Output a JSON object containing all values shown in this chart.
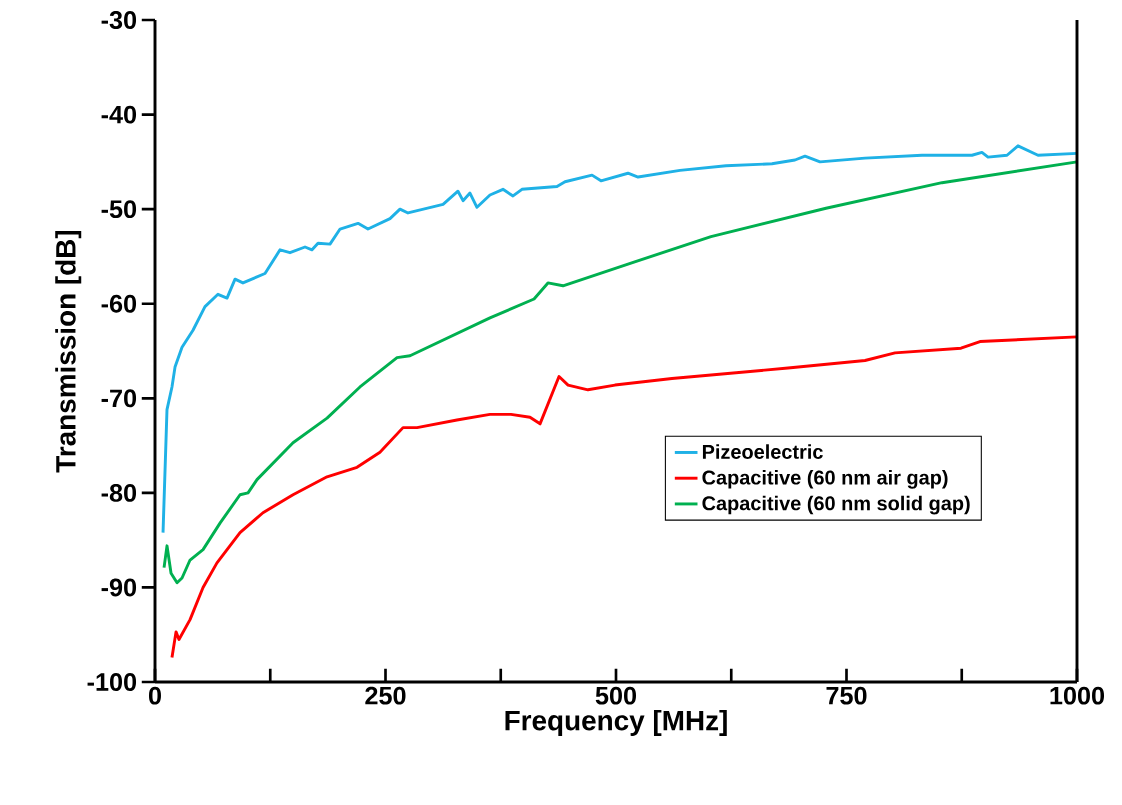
{
  "chart_data": {
    "type": "line",
    "xlabel": "Frequency [MHz]",
    "ylabel": "Transmission [dB]",
    "xlim": [
      0,
      1000
    ],
    "ylim": [
      -100,
      -30
    ],
    "xticks": [
      0,
      {
        "value": 125,
        "label": null
      },
      250,
      {
        "value": 375,
        "label": null
      },
      500,
      {
        "value": 625,
        "label": null
      },
      750,
      {
        "value": 875,
        "label": null
      },
      1000
    ],
    "yticks": [
      -100,
      -90,
      -80,
      -70,
      -60,
      -50,
      -40,
      -30
    ],
    "legend": "right",
    "grid": false,
    "marker": "none",
    "line_style": "solid",
    "series": [
      {
        "name": "Pizeoelectric",
        "color": "#1fb1e6",
        "x": [
          8.7,
          13,
          18.4,
          21.7,
          29.3,
          41.2,
          54.2,
          68.3,
          78.1,
          86.8,
          95.4,
          119.3,
          135.6,
          146.4,
          162.7,
          170.3,
          176.8,
          189.8,
          200.7,
          220.2,
          231,
          254.9,
          265.7,
          274.4,
          312.4,
          328.6,
          334.1,
          341.6,
          349.2,
          363.3,
          377.4,
          388.3,
          398,
          436,
          444.7,
          474,
          483.7,
          513,
          523.9,
          569.4,
          619.3,
          669.2,
          694.1,
          705,
          721.3,
          770.1,
          831.9,
          886.1,
          896.9,
          903.5,
          924.1,
          936,
          957.7,
          1000
        ],
        "values": [
          -84.2,
          -71.2,
          -68.8,
          -66.7,
          -64.6,
          -62.8,
          -60.3,
          -59.0,
          -59.4,
          -57.4,
          -57.8,
          -56.8,
          -54.3,
          -54.6,
          -54.0,
          -54.3,
          -53.6,
          -53.7,
          -52.1,
          -51.5,
          -52.1,
          -51.0,
          -50.0,
          -50.4,
          -49.5,
          -48.1,
          -49.1,
          -48.3,
          -49.8,
          -48.5,
          -47.9,
          -48.6,
          -47.9,
          -47.6,
          -47.1,
          -46.4,
          -47.0,
          -46.2,
          -46.6,
          -45.9,
          -45.4,
          -45.2,
          -44.8,
          -44.4,
          -45.0,
          -44.6,
          -44.3,
          -44.3,
          -44.0,
          -44.5,
          -44.3,
          -43.3,
          -44.3,
          -44.1
        ]
      },
      {
        "name": "Capacitive (60 nm air gap)",
        "color": "#ff0000",
        "x": [
          18.4,
          22.8,
          26,
          38,
          52.1,
          67.2,
          92.2,
          117.1,
          149.7,
          186.6,
          219.1,
          244,
          269,
          284.2,
          327.5,
          363.3,
          386.1,
          406.7,
          417.6,
          438.2,
          448,
          469.6,
          498.9,
          560.7,
          686.6,
          770.1,
          802.6,
          874.2,
          894.8,
          1000
        ],
        "values": [
          -97.4,
          -94.7,
          -95.5,
          -93.4,
          -90.0,
          -87.4,
          -84.2,
          -82.1,
          -80.2,
          -78.3,
          -77.3,
          -75.7,
          -73.1,
          -73.1,
          -72.3,
          -71.7,
          -71.7,
          -72.0,
          -72.7,
          -67.7,
          -68.6,
          -69.1,
          -68.6,
          -67.9,
          -66.8,
          -66.0,
          -65.2,
          -64.7,
          -64.0,
          -63.5
        ]
      },
      {
        "name": "Capacitive (60 nm solid gap)",
        "color": "#00b050",
        "x": [
          9.8,
          13,
          17.4,
          23.9,
          29.3,
          38,
          52.1,
          70.5,
          92.2,
          100.9,
          110.6,
          149.7,
          186.6,
          222.3,
          262.5,
          276.6,
          363.3,
          411.1,
          426.2,
          442.5,
          519.5,
          603,
          727.8,
          853.6,
          1000
        ],
        "values": [
          -87.9,
          -85.6,
          -88.5,
          -89.5,
          -89.0,
          -87.1,
          -86.0,
          -83.2,
          -80.2,
          -80.0,
          -78.6,
          -74.7,
          -72.1,
          -68.8,
          -65.7,
          -65.5,
          -61.5,
          -59.5,
          -57.8,
          -58.1,
          -55.6,
          -52.9,
          -49.9,
          -47.2,
          -45.0
        ]
      }
    ]
  }
}
